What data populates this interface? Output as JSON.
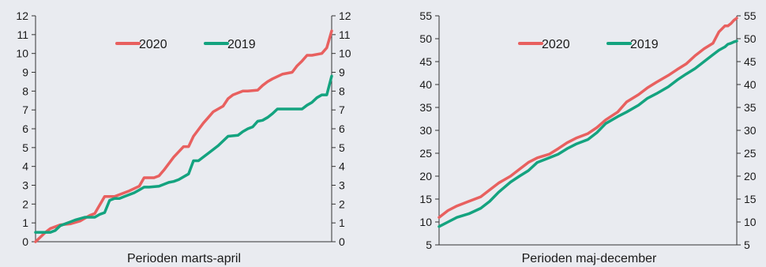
{
  "chart_data": [
    {
      "type": "line",
      "xlabel": "Perioden marts-april",
      "ylim": [
        0,
        12
      ],
      "yticks": [
        "0",
        "1",
        "2",
        "3",
        "4",
        "5",
        "6",
        "7",
        "8",
        "9",
        "10",
        "11",
        "12"
      ],
      "grid": false,
      "legend_position": "top-center",
      "x_domain": [
        0,
        60
      ],
      "series": [
        {
          "name": "2020",
          "color": "#e8605f",
          "x": [
            0,
            2,
            3,
            5,
            7,
            9,
            11,
            12,
            14,
            16,
            17,
            19,
            21,
            22,
            24,
            25,
            26,
            28,
            30,
            31,
            32,
            34,
            35,
            36,
            38,
            39,
            40,
            42,
            43,
            45,
            46,
            47,
            48,
            50,
            52,
            53,
            54,
            55,
            56,
            58,
            59,
            60
          ],
          "y": [
            0,
            0.5,
            0.7,
            0.9,
            0.95,
            1.1,
            1.4,
            1.5,
            2.4,
            2.4,
            2.5,
            2.7,
            2.95,
            3.4,
            3.4,
            3.5,
            3.8,
            4.5,
            5.05,
            5.05,
            5.6,
            6.3,
            6.6,
            6.9,
            7.2,
            7.6,
            7.8,
            8.0,
            8.0,
            8.05,
            8.3,
            8.5,
            8.65,
            8.9,
            9.0,
            9.35,
            9.6,
            9.9,
            9.9,
            10.0,
            10.3,
            11.2
          ]
        },
        {
          "name": "2019",
          "color": "#14a37f",
          "x": [
            0,
            3,
            4,
            5,
            7,
            8,
            10,
            12,
            13,
            14,
            15,
            16,
            17,
            18,
            19,
            20,
            21,
            22,
            23,
            25,
            27,
            28,
            29,
            31,
            32,
            33,
            35,
            36,
            37,
            39,
            41,
            42,
            43,
            44,
            45,
            46,
            47,
            48,
            49,
            50,
            52,
            54,
            55,
            56,
            57,
            58,
            59,
            60
          ],
          "y": [
            0.5,
            0.5,
            0.6,
            0.85,
            1.05,
            1.15,
            1.3,
            1.3,
            1.45,
            1.55,
            2.2,
            2.3,
            2.3,
            2.4,
            2.5,
            2.6,
            2.75,
            2.9,
            2.9,
            2.95,
            3.15,
            3.2,
            3.3,
            3.6,
            4.3,
            4.3,
            4.7,
            4.9,
            5.1,
            5.6,
            5.65,
            5.85,
            6.0,
            6.1,
            6.4,
            6.45,
            6.6,
            6.8,
            7.05,
            7.05,
            7.05,
            7.05,
            7.25,
            7.4,
            7.65,
            7.8,
            7.8,
            8.8
          ]
        }
      ]
    },
    {
      "type": "line",
      "xlabel": "Perioden maj-december",
      "ylim": [
        5,
        55
      ],
      "yticks": [
        "5",
        "10",
        "15",
        "20",
        "25",
        "30",
        "35",
        "40",
        "45",
        "50",
        "55"
      ],
      "grid": false,
      "legend_position": "top-center",
      "x_domain": [
        0,
        100
      ],
      "series": [
        {
          "name": "2020",
          "color": "#e8605f",
          "x": [
            0,
            3,
            6,
            10,
            14,
            17,
            20,
            24,
            27,
            30,
            33,
            37,
            40,
            43,
            46,
            50,
            53,
            56,
            60,
            63,
            67,
            70,
            73,
            77,
            80,
            83,
            86,
            89,
            92,
            94,
            96,
            97,
            98,
            99,
            100
          ],
          "y": [
            11,
            12.5,
            13.5,
            14.5,
            15.5,
            17,
            18.5,
            20,
            21.5,
            23,
            24,
            24.8,
            26,
            27.3,
            28.3,
            29.3,
            30.6,
            32.3,
            34,
            36.2,
            37.8,
            39.3,
            40.5,
            42,
            43.3,
            44.5,
            46.3,
            47.8,
            49,
            51.5,
            52.8,
            52.8,
            53.3,
            54,
            54.5
          ]
        },
        {
          "name": "2019",
          "color": "#14a37f",
          "x": [
            0,
            3,
            6,
            10,
            14,
            17,
            20,
            24,
            27,
            30,
            33,
            37,
            40,
            43,
            46,
            50,
            53,
            56,
            60,
            63,
            67,
            70,
            73,
            77,
            80,
            83,
            86,
            89,
            92,
            94,
            96,
            97,
            98,
            99,
            100
          ],
          "y": [
            9,
            10,
            11,
            11.8,
            13,
            14.5,
            16.5,
            18.7,
            20,
            21.2,
            23,
            24,
            24.8,
            26,
            27,
            28,
            29.5,
            31.5,
            33,
            34,
            35.5,
            37,
            38,
            39.5,
            41,
            42.3,
            43.5,
            45,
            46.5,
            47.5,
            48.2,
            48.8,
            49,
            49.3,
            49.5
          ]
        }
      ]
    }
  ]
}
